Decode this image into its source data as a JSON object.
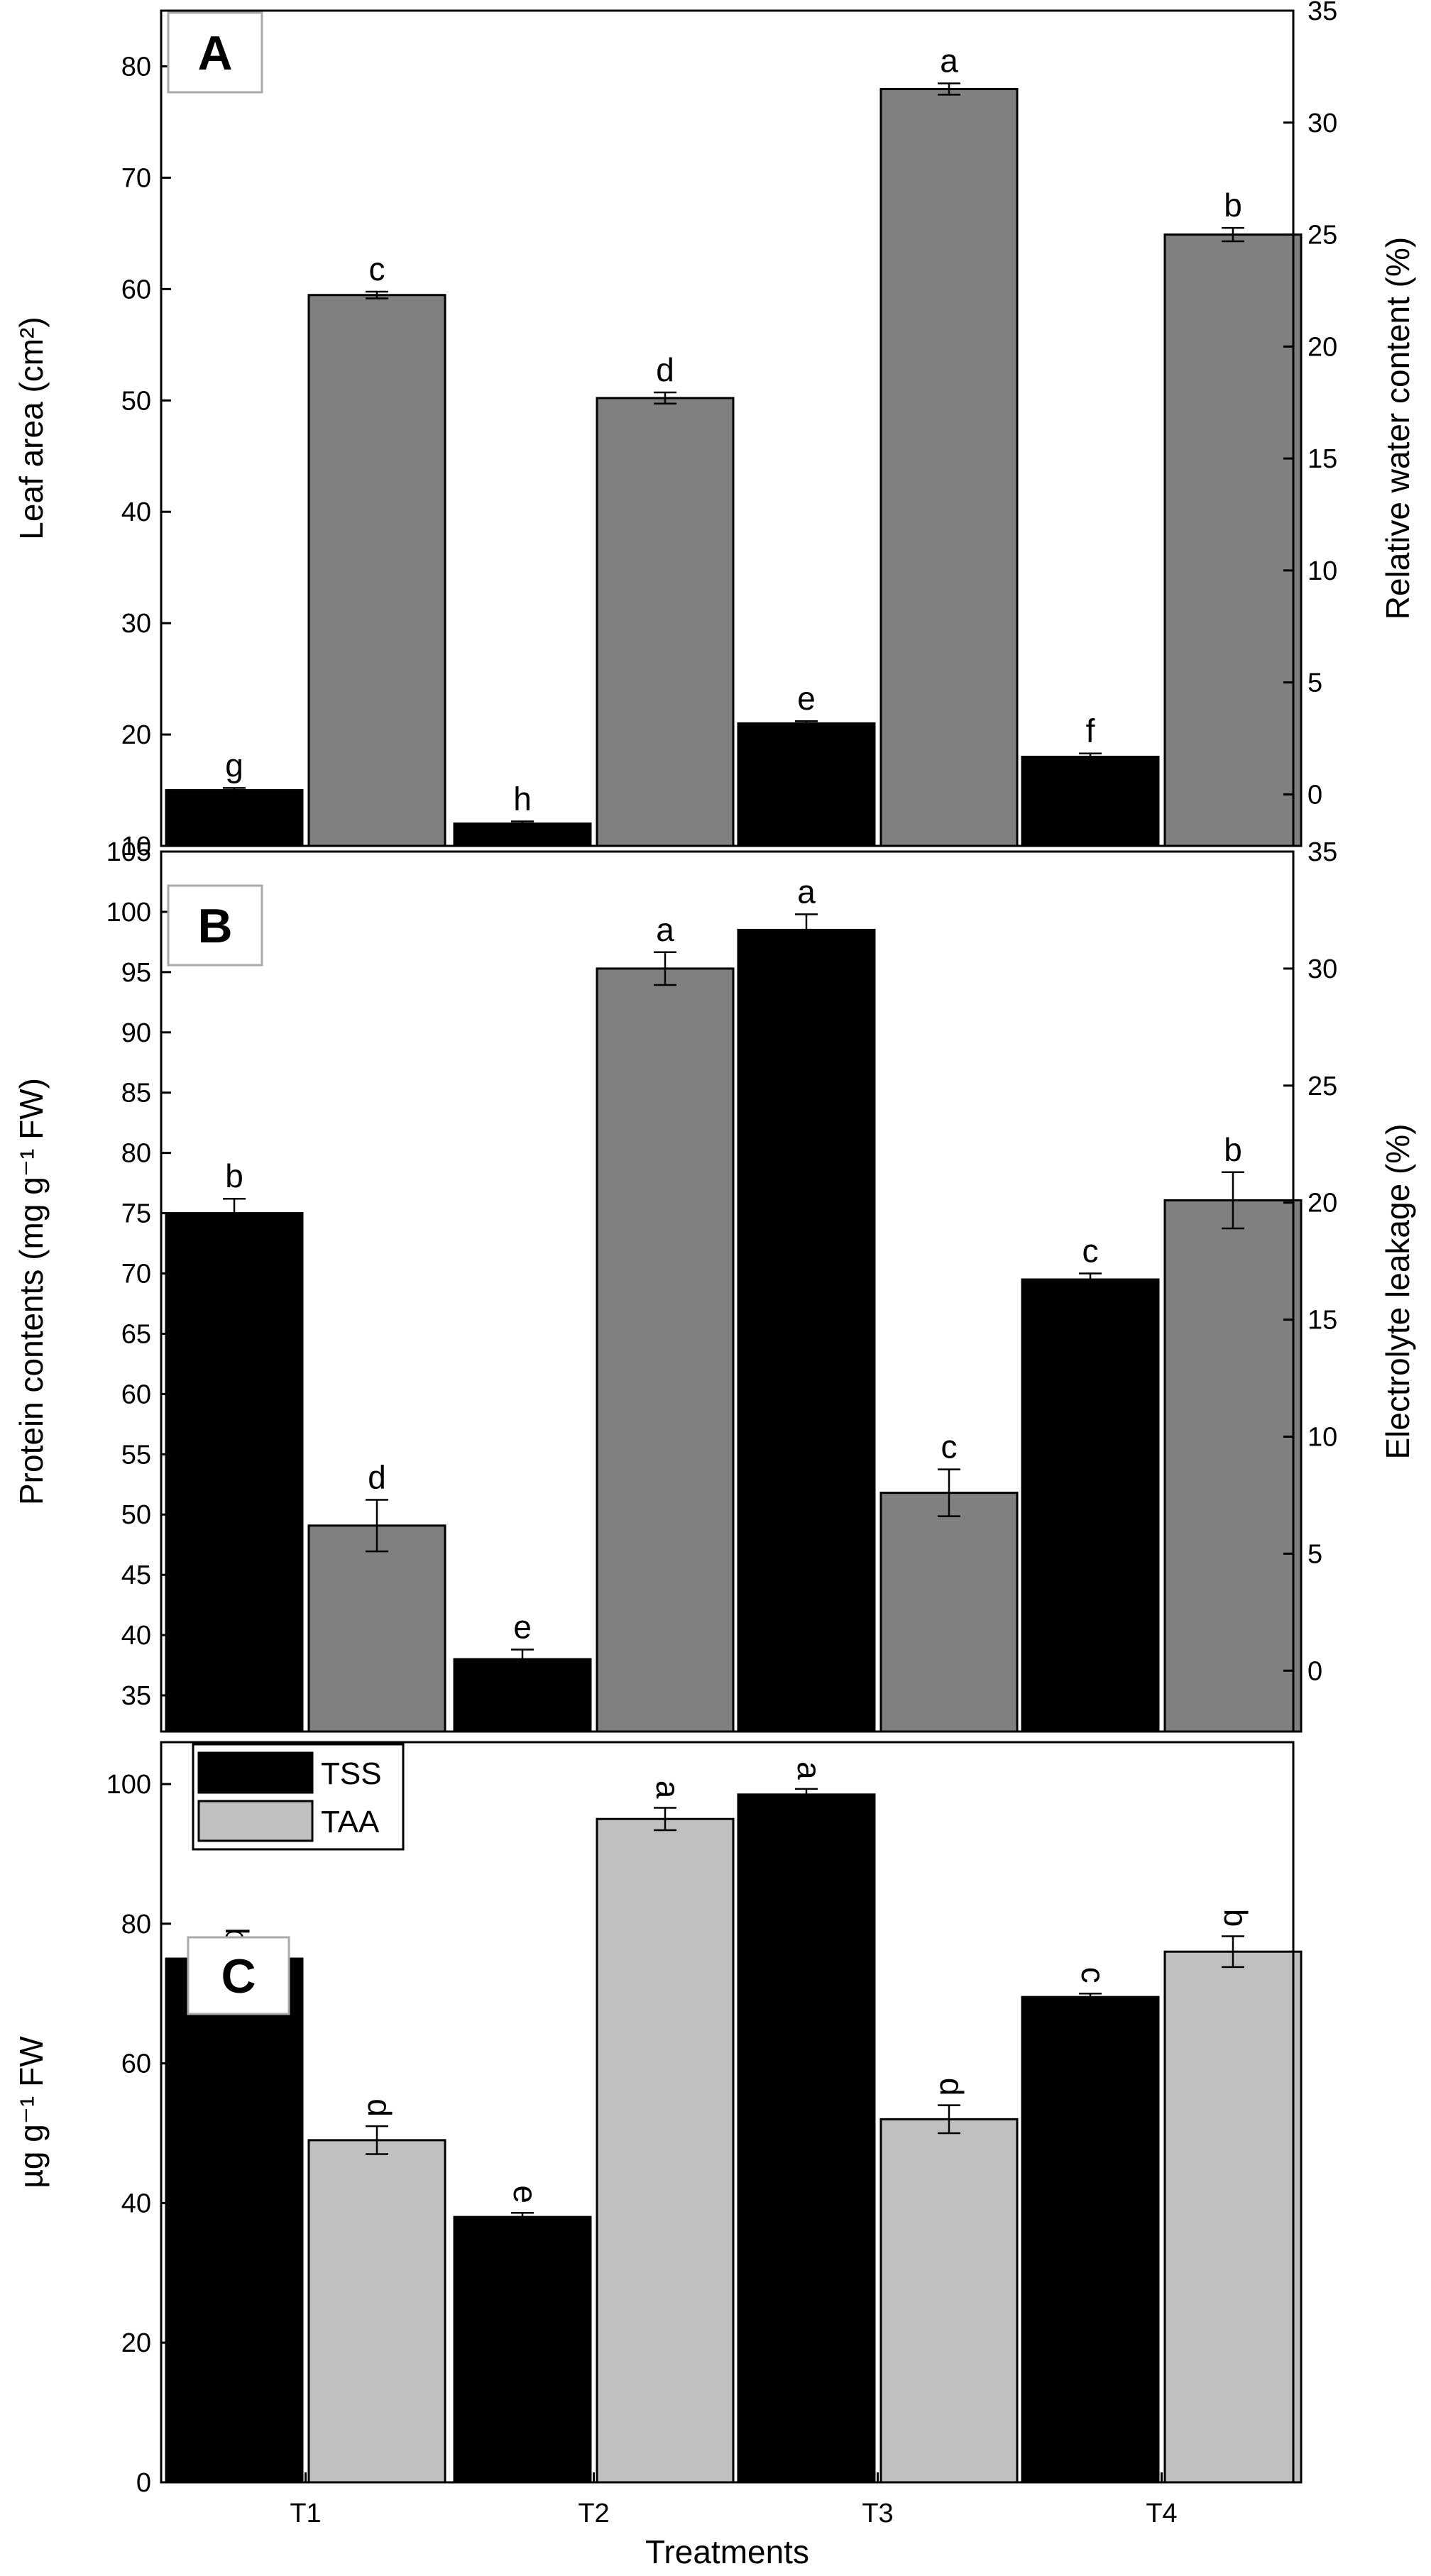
{
  "chart_data": [
    {
      "type": "bar",
      "panel_label": "A",
      "categories": [
        "T1",
        "T2",
        "T3",
        "T4"
      ],
      "xlabel": "",
      "series": [
        {
          "axis": "left",
          "color": "#000000",
          "values": [
            15,
            12,
            21,
            18
          ],
          "errors": [
            0.2,
            0.2,
            0.2,
            0.3
          ],
          "labels": [
            "g",
            "h",
            "e",
            "f"
          ]
        },
        {
          "axis": "right",
          "color": "#808080",
          "values": [
            22.3,
            17.7,
            31.5,
            25.0
          ],
          "errors": [
            0.15,
            0.25,
            0.25,
            0.3
          ],
          "labels": [
            "c",
            "d",
            "a",
            "b"
          ]
        }
      ],
      "left_axis": {
        "label": "Leaf area (cm²)",
        "ylim": [
          10,
          85
        ],
        "ticks": [
          10,
          20,
          30,
          40,
          50,
          60,
          70,
          80
        ]
      },
      "right_axis": {
        "label": "Relative water content (%)",
        "ylim": [
          -2.3,
          35
        ],
        "ticks": [
          0,
          5,
          10,
          15,
          20,
          25,
          30,
          35
        ]
      }
    },
    {
      "type": "bar",
      "panel_label": "B",
      "categories": [
        "T1",
        "T2",
        "T3",
        "T4"
      ],
      "xlabel": "",
      "series": [
        {
          "axis": "left",
          "color": "#000000",
          "values": [
            75,
            38,
            98.5,
            69.5
          ],
          "errors": [
            1.2,
            0.8,
            1.3,
            0.5
          ],
          "labels": [
            "b",
            "e",
            "a",
            "c"
          ]
        },
        {
          "axis": "right",
          "color": "#808080",
          "values": [
            6.2,
            30.0,
            7.6,
            20.1
          ],
          "errors": [
            1.1,
            0.7,
            1.0,
            1.2
          ],
          "labels": [
            "d",
            "a",
            "c",
            "b"
          ]
        }
      ],
      "left_axis": {
        "label": "Protein contents (mg g⁻¹ FW)",
        "ylim": [
          32,
          105
        ],
        "ticks": [
          35,
          40,
          45,
          50,
          55,
          60,
          65,
          70,
          75,
          80,
          85,
          90,
          95,
          100,
          105
        ]
      },
      "right_axis": {
        "label": "Electrolyte leakage (%)",
        "ylim": [
          -2.6,
          35
        ],
        "ticks": [
          0,
          5,
          10,
          15,
          20,
          25,
          30,
          35
        ]
      }
    },
    {
      "type": "bar",
      "panel_label": "C",
      "categories": [
        "T1",
        "T2",
        "T3",
        "T4"
      ],
      "xlabel": "Treatments",
      "series": [
        {
          "name": "TSS",
          "axis": "left",
          "color": "#000000",
          "values": [
            75,
            38,
            98.5,
            69.5
          ],
          "errors": [
            0.5,
            0.6,
            0.8,
            0.5
          ],
          "labels": [
            "b",
            "e",
            "a",
            "c"
          ]
        },
        {
          "name": "TAA",
          "axis": "left",
          "color": "#c0c0c0",
          "values": [
            49,
            95,
            52,
            76
          ],
          "errors": [
            2.0,
            1.6,
            2.0,
            2.2
          ],
          "labels": [
            "d",
            "a",
            "d",
            "b"
          ]
        }
      ],
      "left_axis": {
        "label": "µg g⁻¹ FW",
        "ylim": [
          0,
          106
        ],
        "ticks": [
          0,
          20,
          40,
          60,
          80,
          100
        ]
      },
      "legend": {
        "position": "top-left"
      }
    }
  ]
}
